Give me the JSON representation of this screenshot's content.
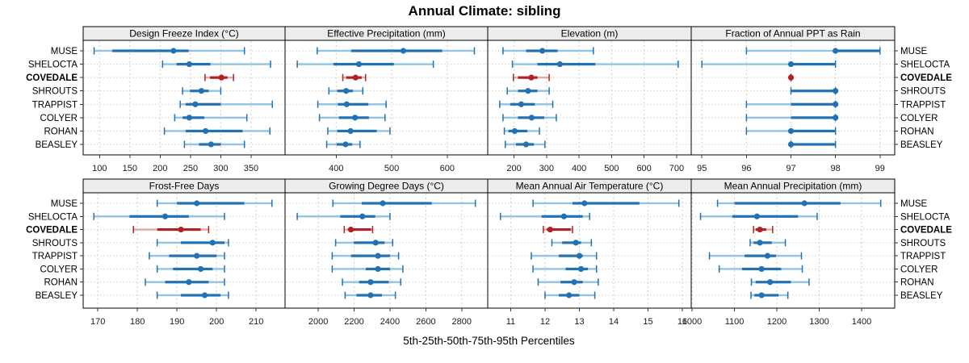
{
  "title": "Annual Climate: sibling",
  "xlabel": "5th-25th-50th-75th-95th Percentiles",
  "colors": {
    "series": "#2171b5",
    "series_light": "#93c4e1",
    "highlight": "#b22222",
    "highlight_light": "#dfa9a5",
    "strip_bg": "#ececec",
    "grid": "#cfcfcf",
    "border": "#000000",
    "tick": "#333333"
  },
  "chart_data": {
    "type": "dotplot-percentile-trellis",
    "percentile_labels": [
      "5th",
      "25th",
      "50th",
      "75th",
      "95th"
    ],
    "categories": [
      "MUSE",
      "SHELOCTA",
      "COVEDALE",
      "SHROUTS",
      "TRAPPIST",
      "COLYER",
      "ROHAN",
      "BEASLEY"
    ],
    "highlight": "COVEDALE",
    "grid": "dashed-vertical-and-dotted-horizontal",
    "panels": [
      {
        "title": "Design Freeze Index (°C)",
        "domain": [
          73,
          406
        ],
        "ticks": [
          100,
          150,
          200,
          250,
          300,
          350
        ],
        "values": [
          [
            91,
            121,
            222,
            247,
            339
          ],
          [
            204,
            227,
            248,
            283,
            382
          ],
          [
            274,
            282,
            301,
            311,
            321
          ],
          [
            237,
            249,
            268,
            280,
            300
          ],
          [
            233,
            242,
            258,
            300,
            385
          ],
          [
            224,
            237,
            248,
            273,
            343
          ],
          [
            207,
            242,
            275,
            336,
            381
          ],
          [
            240,
            264,
            284,
            300,
            339
          ]
        ]
      },
      {
        "title": "Effective Precipitation (mm)",
        "domain": [
          308,
          673
        ],
        "ticks": [
          400,
          500,
          600
        ],
        "values": [
          [
            366,
            427,
            521,
            591,
            649
          ],
          [
            330,
            395,
            441,
            504,
            575
          ],
          [
            412,
            418,
            435,
            446,
            453
          ],
          [
            387,
            402,
            418,
            430,
            448
          ],
          [
            367,
            403,
            419,
            458,
            490
          ],
          [
            370,
            405,
            434,
            459,
            488
          ],
          [
            385,
            402,
            426,
            473,
            497
          ],
          [
            383,
            401,
            417,
            429,
            443
          ]
        ]
      },
      {
        "title": "Elevation (m)",
        "domain": [
          119,
          745
        ],
        "ticks": [
          200,
          300,
          400,
          500,
          600,
          700
        ],
        "values": [
          [
            166,
            237,
            287,
            334,
            444
          ],
          [
            195,
            272,
            341,
            450,
            705
          ],
          [
            198,
            212,
            253,
            272,
            308
          ],
          [
            179,
            212,
            243,
            272,
            308
          ],
          [
            156,
            188,
            222,
            264,
            319
          ],
          [
            166,
            212,
            254,
            293,
            330
          ],
          [
            170,
            183,
            202,
            241,
            278
          ],
          [
            173,
            206,
            237,
            261,
            295
          ]
        ]
      },
      {
        "title": "Fraction of Annual PPT as Rain",
        "domain": [
          94.76,
          99.33
        ],
        "ticks": [
          95,
          96,
          97,
          98,
          99
        ],
        "values": [
          [
            96,
            98,
            98,
            99,
            99
          ],
          [
            95,
            97,
            97,
            98,
            98
          ],
          [
            97,
            97,
            97,
            97,
            97
          ],
          [
            97,
            97,
            98,
            98,
            98
          ],
          [
            96,
            97,
            98,
            98,
            98
          ],
          [
            96,
            97,
            98,
            98,
            98
          ],
          [
            96,
            97,
            97,
            98,
            98
          ],
          [
            97,
            97,
            97,
            98,
            98
          ]
        ]
      },
      {
        "title": "Frost-Free Days",
        "domain": [
          166.3,
          217.3
        ],
        "ticks": [
          170,
          180,
          190,
          200,
          210
        ],
        "values": [
          [
            185,
            190,
            195,
            207,
            214
          ],
          [
            169,
            178,
            187,
            193,
            202
          ],
          [
            179,
            185,
            191,
            196,
            198
          ],
          [
            185,
            191,
            199,
            202,
            203
          ],
          [
            183,
            188,
            195,
            200,
            202
          ],
          [
            185,
            189,
            196,
            199,
            202
          ],
          [
            182,
            187,
            193,
            198,
            202
          ],
          [
            185,
            191,
            197,
            201,
            203
          ]
        ]
      },
      {
        "title": "Growing Degree Days (°C)",
        "domain": [
          1815,
          2945
        ],
        "ticks": [
          2000,
          2200,
          2400,
          2600,
          2800
        ],
        "values": [
          [
            2082,
            2243,
            2360,
            2633,
            2876
          ],
          [
            1883,
            2123,
            2246,
            2318,
            2400
          ],
          [
            2145,
            2165,
            2182,
            2295,
            2303
          ],
          [
            2097,
            2198,
            2320,
            2370,
            2415
          ],
          [
            2078,
            2183,
            2333,
            2400,
            2448
          ],
          [
            2078,
            2265,
            2333,
            2400,
            2472
          ],
          [
            2135,
            2228,
            2292,
            2393,
            2460
          ],
          [
            2150,
            2213,
            2292,
            2355,
            2430
          ]
        ]
      },
      {
        "title": "Mean Annual Air Temperature (°C)",
        "domain": [
          10.33,
          16.26
        ],
        "ticks": [
          11,
          12,
          13,
          14,
          15,
          16
        ],
        "values": [
          [
            11.65,
            12.8,
            13.15,
            14.75,
            15.9
          ],
          [
            10.7,
            11.9,
            12.55,
            13.1,
            13.3
          ],
          [
            11.95,
            12.05,
            12.15,
            12.75,
            12.8
          ],
          [
            12.2,
            12.5,
            12.9,
            13.05,
            13.35
          ],
          [
            11.6,
            12.4,
            13.0,
            13.1,
            13.5
          ],
          [
            11.65,
            12.6,
            13.05,
            13.25,
            13.5
          ],
          [
            11.8,
            12.45,
            12.85,
            13.1,
            13.55
          ],
          [
            12.0,
            12.4,
            12.7,
            13.0,
            13.45
          ]
        ]
      },
      {
        "title": "Mean Annual Precipitation (mm)",
        "domain": [
          998,
          1478
        ],
        "ticks": [
          1000,
          1100,
          1200,
          1300,
          1400
        ],
        "values": [
          [
            1060,
            1100,
            1265,
            1350,
            1445
          ],
          [
            1020,
            1095,
            1153,
            1250,
            1295
          ],
          [
            1145,
            1150,
            1160,
            1175,
            1190
          ],
          [
            1137,
            1145,
            1160,
            1188,
            1220
          ],
          [
            1041,
            1124,
            1178,
            1198,
            1258
          ],
          [
            1064,
            1118,
            1164,
            1210,
            1260
          ],
          [
            1140,
            1150,
            1184,
            1233,
            1276
          ],
          [
            1139,
            1147,
            1164,
            1204,
            1226
          ]
        ]
      }
    ]
  }
}
